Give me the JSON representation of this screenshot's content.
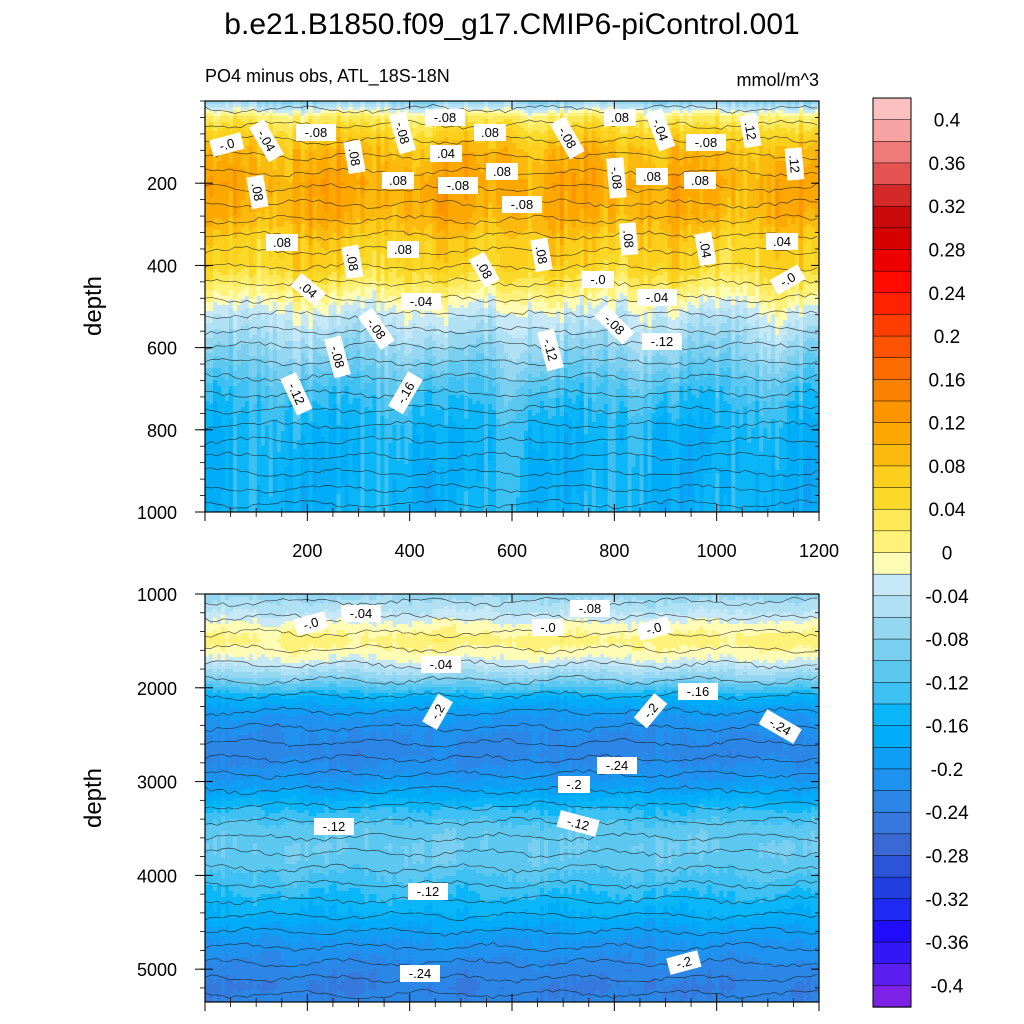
{
  "chart_data": {
    "type": "heatmap",
    "title": "b.e21.B1850.f09_g17.CMIP6-piControl.001",
    "subtitle_left": "PO4 minus obs, ATL_18S-18N",
    "subtitle_right": "mmol/m^3",
    "x_tick_labels": [
      "200",
      "400",
      "600",
      "800",
      "1000",
      "1200"
    ],
    "xlim": [
      0,
      1200
    ],
    "colorbar": {
      "levels": [
        -0.42,
        -0.4,
        -0.38,
        -0.36,
        -0.34,
        -0.32,
        -0.3,
        -0.28,
        -0.26,
        -0.24,
        -0.22,
        -0.2,
        -0.18,
        -0.16,
        -0.14,
        -0.12,
        -0.1,
        -0.08,
        -0.06,
        -0.04,
        -0.02,
        0,
        0.02,
        0.04,
        0.06,
        0.08,
        0.1,
        0.12,
        0.14,
        0.16,
        0.18,
        0.2,
        0.22,
        0.24,
        0.26,
        0.28,
        0.3,
        0.32,
        0.34,
        0.36,
        0.38,
        0.4,
        0.42
      ],
      "colors": [
        "#7f22e8",
        "#5a1fee",
        "#3516f5",
        "#1f0dfc",
        "#1e2bf4",
        "#213fe0",
        "#2b55d6",
        "#3b69d4",
        "#3778dc",
        "#2c86e6",
        "#1e92ee",
        "#0f9ef4",
        "#00acf7",
        "#0ab6f7",
        "#3ec0f3",
        "#5dc8ef",
        "#7acff0",
        "#95d6f0",
        "#b0e0f4",
        "#c7e8f6",
        "#fffcb5",
        "#fff27a",
        "#fde957",
        "#fbd929",
        "#fbcf1c",
        "#fdba0e",
        "#fda800",
        "#fc9500",
        "#fb8200",
        "#fb6b00",
        "#fc5300",
        "#fd3e00",
        "#ff2200",
        "#ff0a00",
        "#ef0000",
        "#d70000",
        "#c80a0a",
        "#d52828",
        "#e45252",
        "#ef7a7a",
        "#f8a3a3",
        "#fcc0c0"
      ],
      "tick_labels": [
        "0.4",
        "0.36",
        "0.32",
        "0.28",
        "0.24",
        "0.2",
        "0.16",
        "0.12",
        "0.08",
        "0.04",
        "0",
        "-0.04",
        "-0.08",
        "-0.12",
        "-0.16",
        "-0.2",
        "-0.24",
        "-0.28",
        "-0.32",
        "-0.36",
        "-0.4"
      ]
    },
    "panels": [
      {
        "ylabel": "depth",
        "ylim": [
          0,
          1000
        ],
        "y_tick_labels": [
          "200",
          "400",
          "600",
          "800",
          "1000"
        ],
        "y_ticks": [
          200,
          400,
          600,
          800,
          1000
        ],
        "profile": [
          [
            0,
            -0.08
          ],
          [
            15,
            -0.04
          ],
          [
            40,
            0.02
          ],
          [
            80,
            0.06
          ],
          [
            120,
            0.09
          ],
          [
            200,
            0.11
          ],
          [
            280,
            0.1
          ],
          [
            340,
            0.07
          ],
          [
            400,
            0.06
          ],
          [
            440,
            0.03
          ],
          [
            480,
            0.0
          ],
          [
            520,
            -0.03
          ],
          [
            580,
            -0.06
          ],
          [
            640,
            -0.09
          ],
          [
            700,
            -0.12
          ],
          [
            800,
            -0.15
          ],
          [
            900,
            -0.155
          ],
          [
            1000,
            -0.155
          ]
        ],
        "contour_labels": [
          "-.0",
          "-.04",
          "-.08",
          "-.08",
          ".08",
          ".08",
          "-.08",
          ".04",
          ".08",
          "-.08",
          ".08",
          "-.08",
          "-.08",
          ".08",
          "-.08",
          "-.04",
          ".08",
          "-.08",
          ".08",
          ".12",
          ".12",
          ".08",
          ".08",
          ".08",
          ".08",
          ".08",
          ".08",
          ".08",
          ".04",
          ".04",
          ".04",
          "-.0",
          "-.0",
          "-.04",
          "-.04",
          "-.08",
          "-.08",
          "-.08",
          "-.12",
          "-.12",
          "-.12",
          "-.16"
        ]
      },
      {
        "ylabel": "depth",
        "ylim": [
          1000,
          5350
        ],
        "y_tick_labels": [
          "1000",
          "2000",
          "3000",
          "4000",
          "5000"
        ],
        "y_ticks": [
          1000,
          2000,
          3000,
          4000,
          5000
        ],
        "profile": [
          [
            1000,
            -0.07
          ],
          [
            1200,
            -0.04
          ],
          [
            1350,
            -0.01
          ],
          [
            1500,
            0.01
          ],
          [
            1700,
            -0.02
          ],
          [
            1900,
            -0.08
          ],
          [
            2100,
            -0.16
          ],
          [
            2300,
            -0.2
          ],
          [
            2500,
            -0.22
          ],
          [
            2700,
            -0.23
          ],
          [
            2900,
            -0.21
          ],
          [
            3100,
            -0.18
          ],
          [
            3300,
            -0.14
          ],
          [
            3500,
            -0.11
          ],
          [
            3700,
            -0.1
          ],
          [
            3900,
            -0.11
          ],
          [
            4100,
            -0.13
          ],
          [
            4400,
            -0.16
          ],
          [
            4700,
            -0.2
          ],
          [
            5000,
            -0.23
          ],
          [
            5200,
            -0.24
          ],
          [
            5350,
            -0.23
          ]
        ],
        "contour_labels": [
          "-.0",
          "-.04",
          "-.08",
          "-.0",
          "-.0",
          "-.04",
          "-.16",
          "-.2",
          "-.2",
          "-.24",
          "-.24",
          "-.2",
          "-.12",
          "-.12",
          "-.12",
          "-.2",
          "-.24"
        ]
      }
    ]
  }
}
